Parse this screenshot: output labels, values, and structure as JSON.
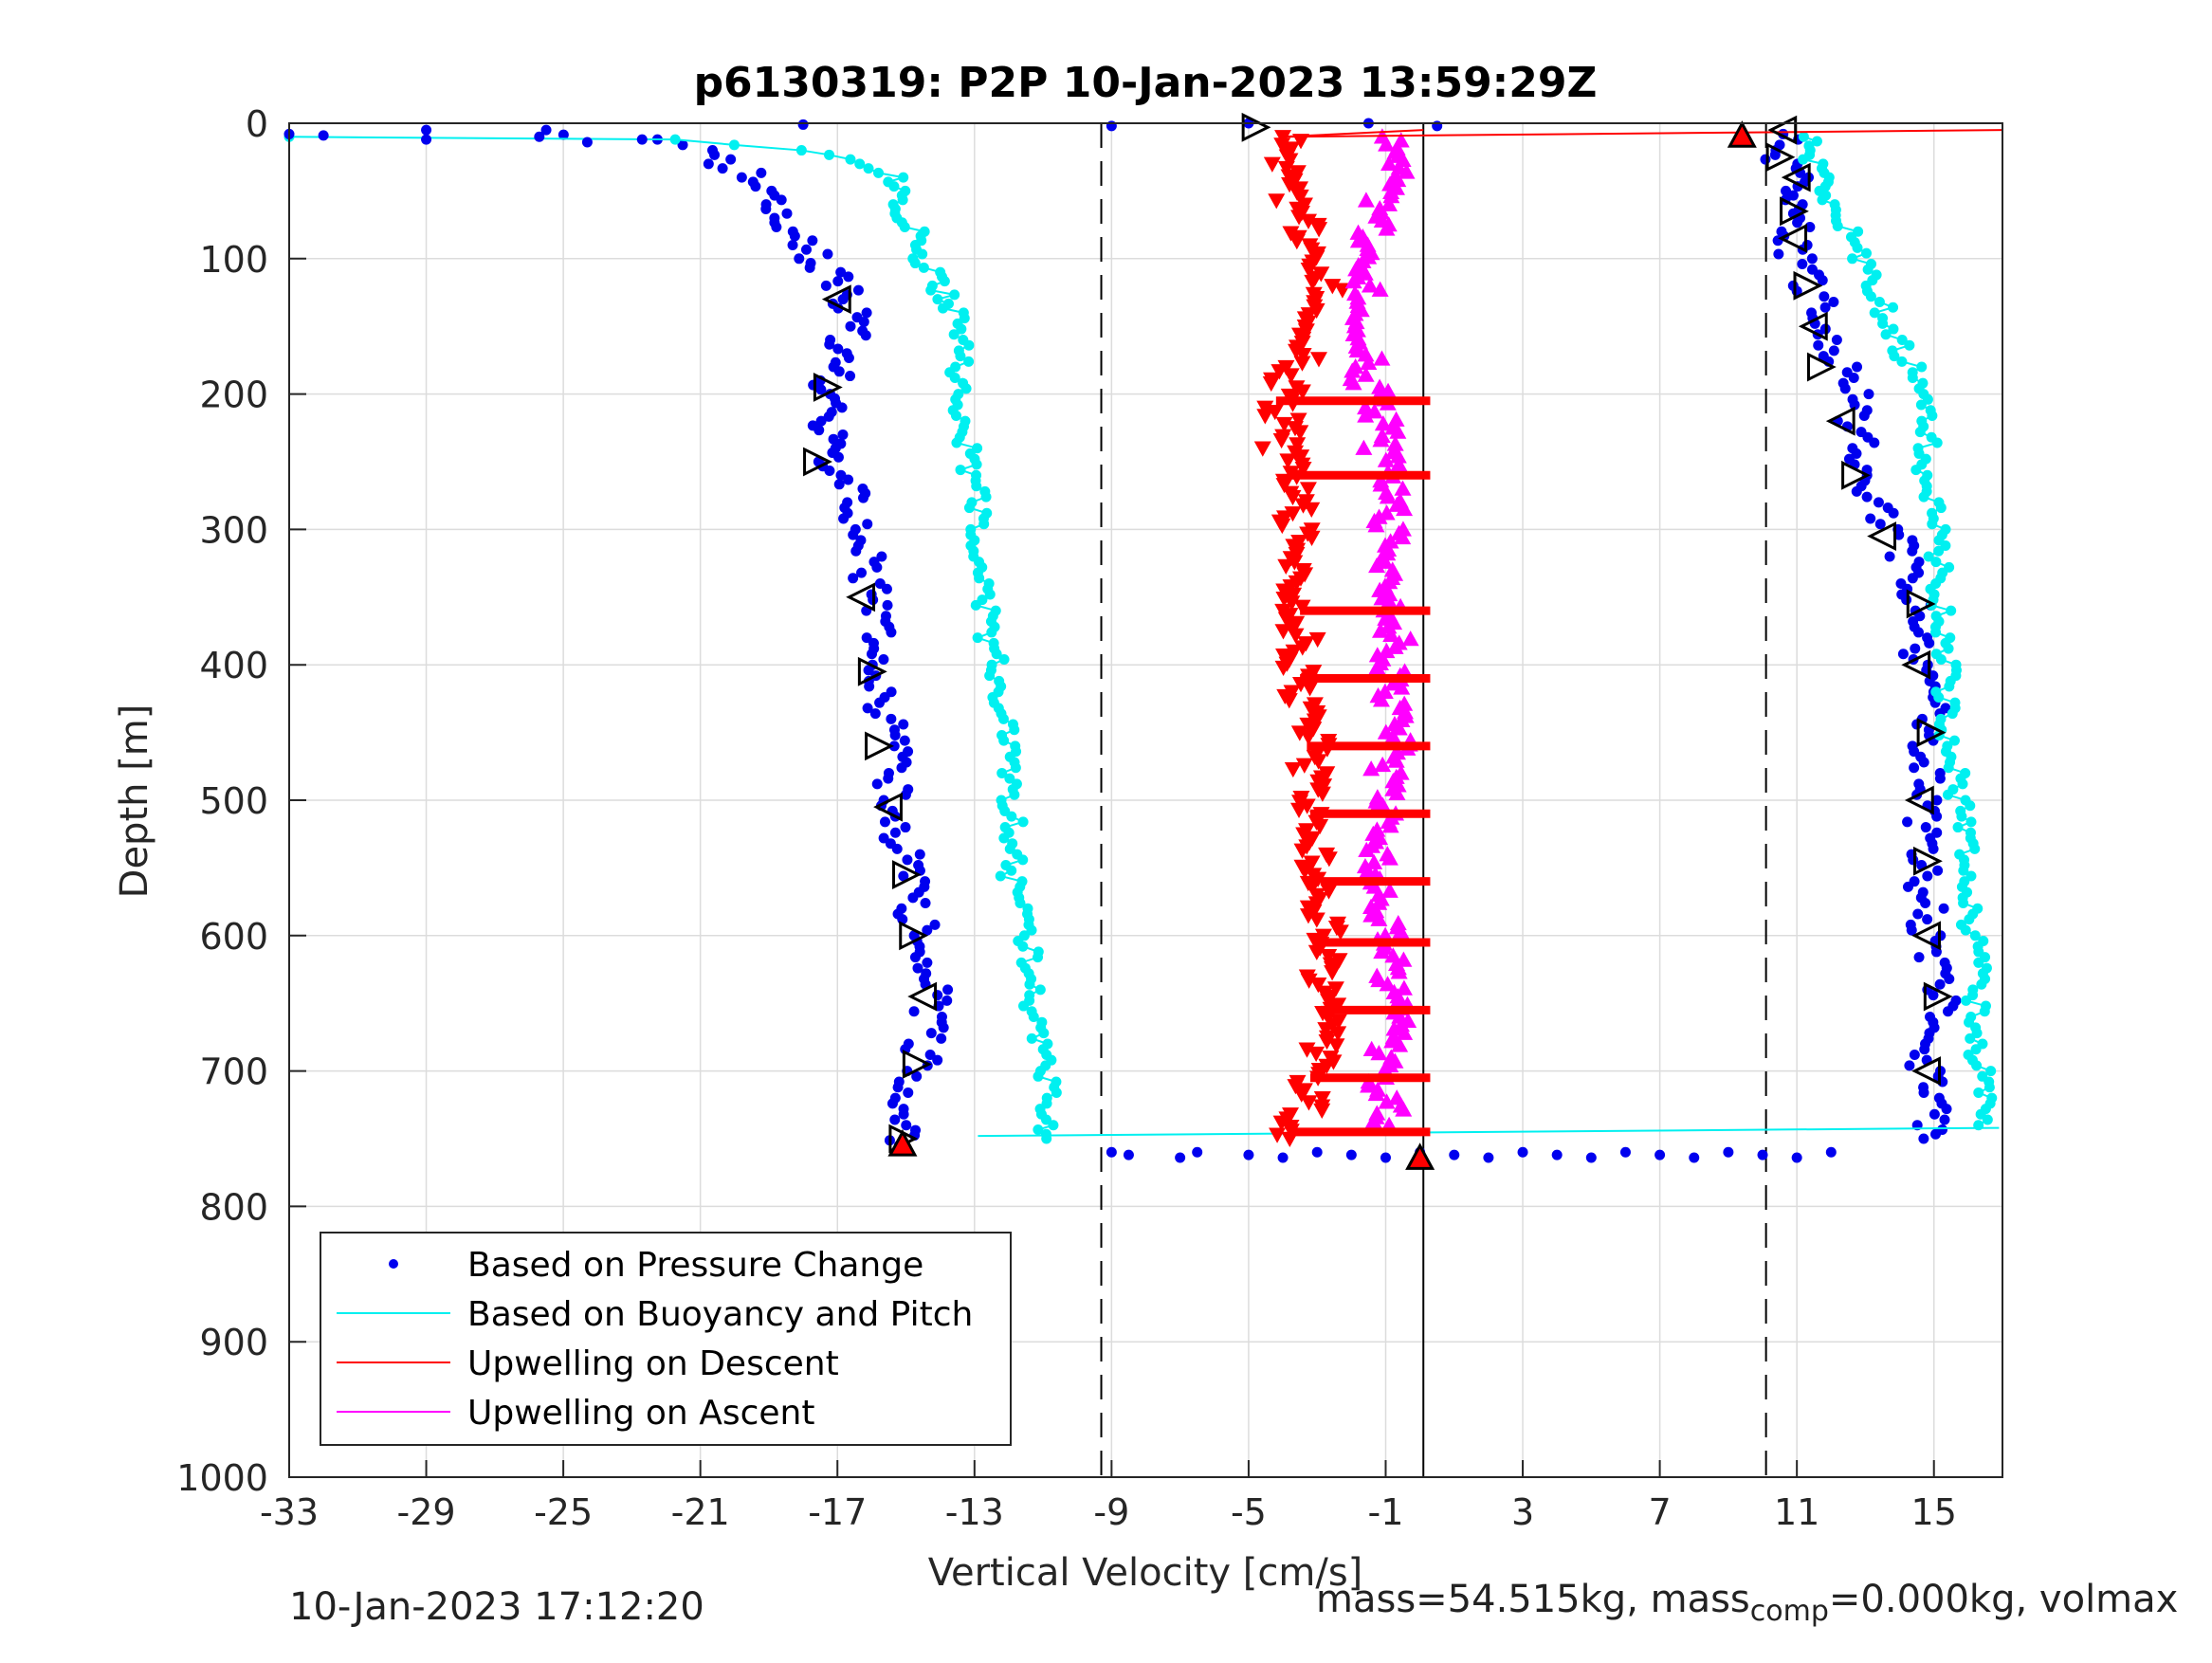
{
  "chart_data": {
    "type": "scatter",
    "title": "p6130319: P2P 10-Jan-2023 13:59:29Z",
    "xlabel": "Vertical Velocity [cm/s]",
    "ylabel": "Depth [m]",
    "xlim": [
      -33,
      17
    ],
    "ylim": [
      0,
      1000
    ],
    "y_reversed": true,
    "grid": true,
    "x_ticks": [
      -33,
      -29,
      -25,
      -21,
      -17,
      -13,
      -9,
      -5,
      -1,
      3,
      7,
      11,
      15
    ],
    "y_ticks": [
      0,
      100,
      200,
      300,
      400,
      500,
      600,
      700,
      800,
      900,
      1000
    ],
    "legend_position": "bottom-left",
    "reference_lines": [
      {
        "x": -9.3,
        "style": "dashed",
        "color": "#000000"
      },
      {
        "x": 10.1,
        "style": "dashed",
        "color": "#000000"
      },
      {
        "x": 0.1,
        "style": "solid",
        "color": "#000000"
      }
    ],
    "series": [
      {
        "name": "Based on Pressure Change",
        "color": "#0000ee",
        "marker": "dot",
        "profiles": [
          {
            "depth": [
              5,
              12,
              20,
              30,
              40,
              50,
              60,
              70,
              80,
              90,
              100,
              110,
              120,
              130,
              140,
              150,
              160,
              170,
              180,
              190,
              200,
              210,
              220,
              230,
              240,
              250,
              260,
              270,
              280,
              300,
              320,
              340,
              360,
              380,
              400,
              420,
              440,
              460,
              480,
              500,
              520,
              540,
              560,
              580,
              600,
              620,
              640,
              660,
              680,
              700,
              720,
              740,
              755
            ],
            "velocity": [
              -29.0,
              -22.0,
              -21.0,
              -20.3,
              -19.5,
              -19.0,
              -18.7,
              -18.5,
              -18.4,
              -18.0,
              -17.6,
              -17.3,
              -17.0,
              -16.8,
              -16.6,
              -16.4,
              -16.8,
              -17.0,
              -17.1,
              -17.2,
              -17.3,
              -17.4,
              -17.4,
              -17.3,
              -17.4,
              -17.3,
              -17.0,
              -16.6,
              -16.4,
              -16.3,
              -16.2,
              -16.1,
              -16.0,
              -15.9,
              -15.8,
              -15.7,
              -15.6,
              -15.5,
              -15.4,
              -15.3,
              -15.2,
              -15.0,
              -14.9,
              -14.8,
              -14.6,
              -14.4,
              -14.3,
              -14.4,
              -14.5,
              -14.6,
              -14.8,
              -15.0,
              -15.2
            ]
          },
          {
            "depth": [
              8,
              20,
              30,
              40,
              50,
              60,
              70,
              80,
              90,
              100,
              120,
              140,
              160,
              180,
              200,
              220,
              240,
              260,
              280,
              300,
              320,
              340,
              360,
              380,
              400,
              420,
              440,
              460,
              480,
              500,
              520,
              540,
              560,
              580,
              600,
              620,
              640,
              660,
              680,
              700,
              720,
              740,
              750
            ],
            "velocity": [
              10.6,
              10.4,
              10.6,
              10.8,
              10.9,
              11.0,
              11.0,
              10.9,
              10.9,
              11.0,
              11.4,
              11.7,
              12.0,
              12.3,
              12.6,
              12.7,
              12.9,
              13.1,
              13.3,
              13.8,
              14.1,
              14.4,
              14.6,
              14.7,
              14.6,
              14.8,
              14.9,
              14.8,
              14.7,
              14.6,
              14.6,
              14.7,
              14.7,
              14.8,
              14.9,
              15.0,
              15.2,
              15.1,
              14.9,
              14.8,
              14.9,
              14.8,
              14.7
            ]
          }
        ]
      },
      {
        "name": "Based on Buoyancy and Pitch",
        "color": "#00f0f0",
        "marker": "line-dots",
        "profiles": [
          {
            "depth": [
              10,
              12,
              20,
              30,
              40,
              50,
              60,
              70,
              80,
              90,
              100,
              110,
              120,
              130,
              140,
              160,
              180,
              200,
              220,
              240,
              260,
              280,
              300,
              320,
              340,
              360,
              380,
              400,
              420,
              440,
              460,
              480,
              500,
              520,
              540,
              560,
              580,
              600,
              620,
              640,
              660,
              680,
              700,
              720,
              740,
              750
            ],
            "velocity": [
              -33.0,
              -21.5,
              -18.2,
              -16.0,
              -15.4,
              -15.2,
              -15.1,
              -15.0,
              -14.7,
              -14.5,
              -14.5,
              -14.2,
              -14.2,
              -13.8,
              -13.6,
              -13.5,
              -13.4,
              -13.4,
              -13.3,
              -13.2,
              -13.1,
              -12.9,
              -12.9,
              -12.8,
              -12.7,
              -12.6,
              -12.6,
              -12.4,
              -12.2,
              -12.2,
              -12.1,
              -12.1,
              -12.0,
              -11.8,
              -11.9,
              -11.9,
              -11.7,
              -11.5,
              -11.4,
              -11.3,
              -11.3,
              -11.2,
              -11.0,
              -10.8,
              -10.9,
              -10.9
            ]
          },
          {
            "depth": [
              10,
              20,
              30,
              40,
              50,
              60,
              80,
              100,
              120,
              140,
              160,
              180,
              200,
              220,
              240,
              260,
              280,
              300,
              320,
              340,
              360,
              380,
              400,
              420,
              440,
              460,
              480,
              500,
              520,
              540,
              560,
              580,
              600,
              620,
              640,
              660,
              680,
              700,
              720,
              740
            ],
            "velocity": [
              11.2,
              11.4,
              11.5,
              11.6,
              11.8,
              12.0,
              12.5,
              12.9,
              13.2,
              13.6,
              14.0,
              14.3,
              14.5,
              14.7,
              14.8,
              14.8,
              14.9,
              15.0,
              15.1,
              15.1,
              15.2,
              15.3,
              15.3,
              15.4,
              15.4,
              15.5,
              15.6,
              15.7,
              15.8,
              15.9,
              16.0,
              16.1,
              16.1,
              16.2,
              16.2,
              16.3,
              16.3,
              16.4,
              16.4,
              16.3
            ]
          }
        ]
      },
      {
        "name": "Upwelling on Descent",
        "color": "#ff0000",
        "marker": "triangle-down",
        "depth": [
          10,
          30,
          60,
          90,
          120,
          150,
          180,
          210,
          240,
          270,
          300,
          330,
          360,
          390,
          420,
          450,
          480,
          510,
          540,
          570,
          600,
          630,
          660,
          690,
          720,
          750
        ],
        "velocity": [
          -4.0,
          -4.2,
          -3.8,
          -3.3,
          -2.6,
          -2.8,
          -3.6,
          -4.2,
          -4.0,
          -3.8,
          -3.6,
          -3.4,
          -3.5,
          -3.6,
          -3.5,
          -3.3,
          -3.1,
          -3.2,
          -3.0,
          -2.9,
          -2.8,
          -2.9,
          -2.9,
          -3.0,
          -3.2,
          -3.8
        ]
      },
      {
        "name": "Upwelling on Ascent",
        "color": "#ff00ff",
        "marker": "triangle-up",
        "depth": [
          10,
          30,
          60,
          90,
          120,
          150,
          180,
          210,
          240,
          270,
          300,
          330,
          360,
          390,
          420,
          450,
          480,
          510,
          540,
          570,
          600,
          630,
          660,
          690,
          720,
          740
        ],
        "velocity": [
          -1.1,
          -0.8,
          -1.3,
          -1.6,
          -1.5,
          -1.4,
          -1.6,
          -1.3,
          -1.1,
          -1.0,
          -0.9,
          -0.8,
          -0.6,
          -0.9,
          -0.8,
          -0.8,
          -0.9,
          -1.0,
          -1.2,
          -1.1,
          -1.0,
          -0.9,
          -0.8,
          -1.2,
          -1.0,
          -0.9
        ]
      }
    ],
    "pitch_markers_left": {
      "depth": [
        130,
        195,
        250,
        350,
        405,
        460,
        505,
        555,
        600,
        645,
        695,
        750
      ],
      "velocity": [
        -17.0,
        -17.3,
        -17.6,
        -16.3,
        -16.0,
        -15.8,
        -15.5,
        -15.0,
        -14.8,
        -14.5,
        -14.7,
        -15.1
      ]
    },
    "pitch_markers_right": {
      "depth": [
        5,
        25,
        40,
        65,
        85,
        120,
        150,
        180,
        220,
        260,
        305,
        355,
        400,
        450,
        500,
        545,
        600,
        645,
        700
      ],
      "velocity": [
        10.6,
        10.5,
        11.0,
        10.9,
        10.9,
        11.3,
        11.5,
        11.7,
        12.3,
        12.7,
        13.5,
        14.6,
        14.5,
        14.9,
        14.6,
        14.8,
        14.8,
        15.1,
        14.8
      ]
    },
    "red_event_markers": [
      {
        "depth": 10,
        "velocity": 9.4
      },
      {
        "depth": 765,
        "velocity": 0.0
      },
      {
        "depth": 755,
        "velocity": -15.1
      }
    ]
  },
  "footer": {
    "timestamp": "10-Jan-2023 17:12:20",
    "mass_text": "mass=54.515kg, mass",
    "mass_sub": "comp",
    "mass_rest": "=0.000kg, volmax"
  }
}
